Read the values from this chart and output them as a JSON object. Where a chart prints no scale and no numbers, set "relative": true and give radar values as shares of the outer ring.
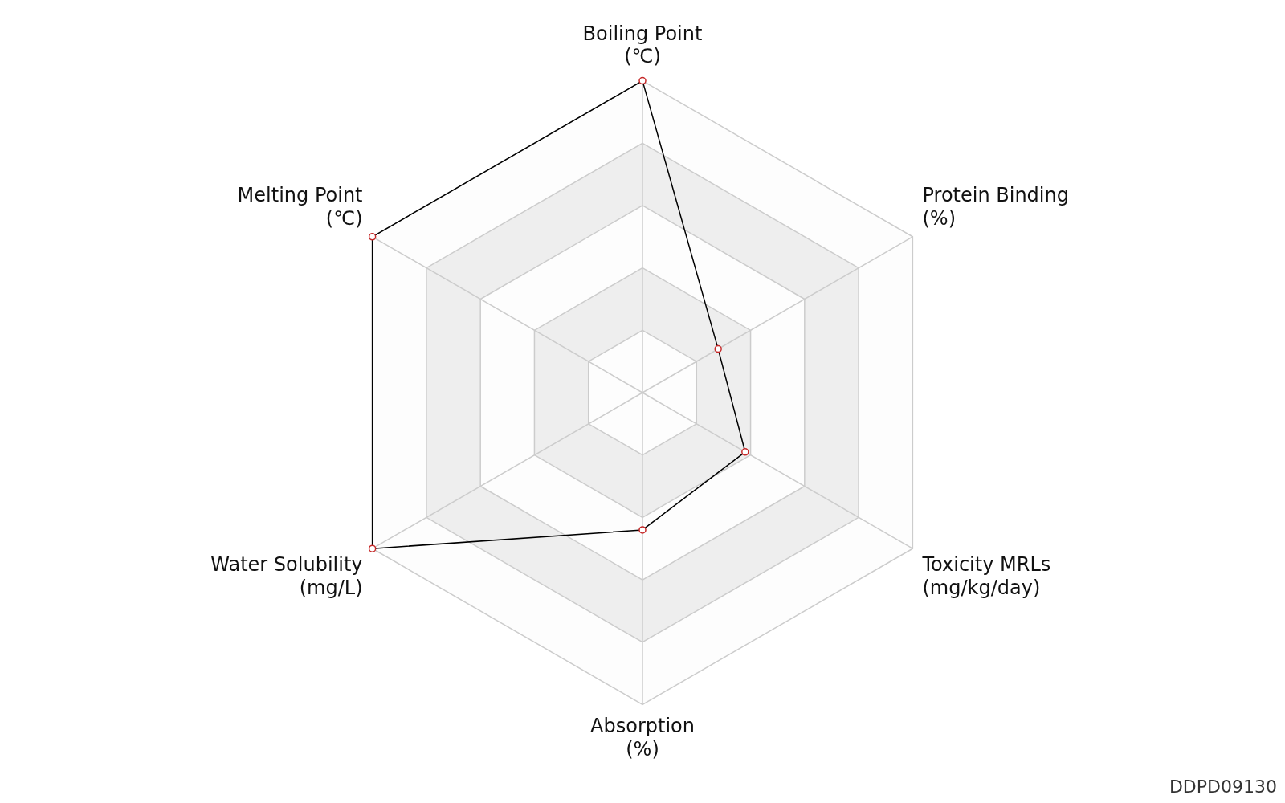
{
  "chart_data": {
    "type": "radar",
    "relative": true,
    "categories": [
      "Boiling Point\n(℃)",
      "Protein Binding\n(%)",
      "Toxicity MRLs\n(mg/kg/day)",
      "Absorption\n(%)",
      "Water Solubility\n(mg/L)",
      "Melting Point\n(℃)"
    ],
    "series": [
      {
        "color": "#000000",
        "values": [
          1,
          0.28,
          0.38,
          0.44,
          1,
          1
        ]
      }
    ],
    "grid": true,
    "legend": false,
    "marker": "circle",
    "line_style": "solid",
    "annotations": [
      "DDPD09130"
    ]
  }
}
